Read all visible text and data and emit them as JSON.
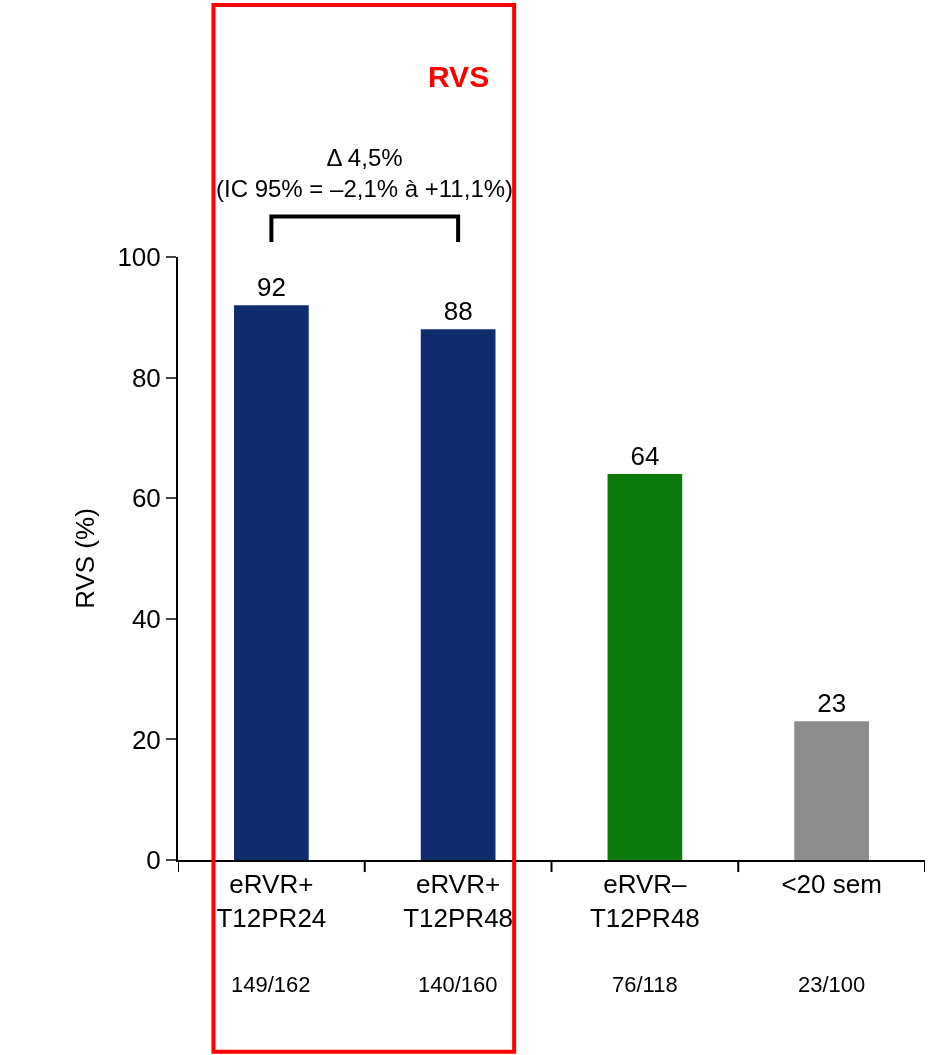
{
  "chart_data": {
    "type": "bar",
    "ylabel": "RVS (%)",
    "categories": [
      "eRVR+\nT12PR24",
      "eRVR+\nT12PR48",
      "eRVR–\nT12PR48",
      "<20 sem"
    ],
    "values": [
      92,
      88,
      64,
      23
    ],
    "colors": [
      "#0f2d6e",
      "#0f2d6e",
      "#0a7a0a",
      "#8c8c8c"
    ],
    "data_labels": true,
    "ylim": [
      0,
      100
    ],
    "yticks": [
      0,
      20,
      40,
      60,
      80,
      100
    ],
    "annotations": [
      "RVS",
      "Δ 4,5%\n(IC 95% = –2,1% à +11,1%)",
      "149/162",
      "140/160",
      "76/118",
      "23/100"
    ]
  }
}
